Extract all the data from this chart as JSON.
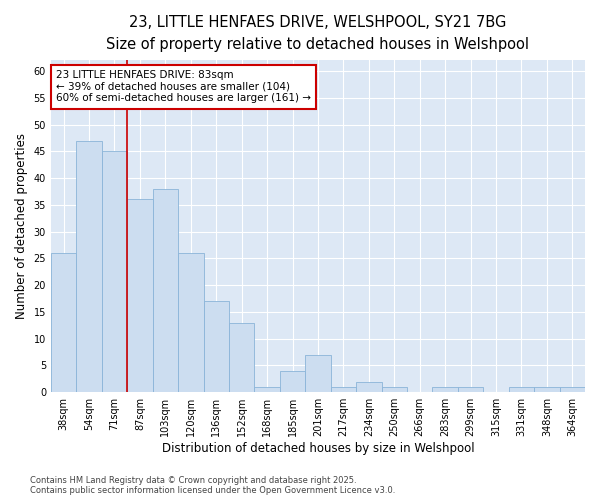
{
  "title_line1": "23, LITTLE HENFAES DRIVE, WELSHPOOL, SY21 7BG",
  "title_line2": "Size of property relative to detached houses in Welshpool",
  "xlabel": "Distribution of detached houses by size in Welshpool",
  "ylabel": "Number of detached properties",
  "categories": [
    "38sqm",
    "54sqm",
    "71sqm",
    "87sqm",
    "103sqm",
    "120sqm",
    "136sqm",
    "152sqm",
    "168sqm",
    "185sqm",
    "201sqm",
    "217sqm",
    "234sqm",
    "250sqm",
    "266sqm",
    "283sqm",
    "299sqm",
    "315sqm",
    "331sqm",
    "348sqm",
    "364sqm"
  ],
  "values": [
    26,
    47,
    45,
    36,
    38,
    26,
    17,
    13,
    1,
    4,
    7,
    1,
    2,
    1,
    0,
    1,
    1,
    0,
    1,
    1,
    1
  ],
  "bar_color": "#ccddf0",
  "bar_edge_color": "#8ab4d8",
  "vline_x": 2.5,
  "vline_color": "#cc0000",
  "annotation_text": "23 LITTLE HENFAES DRIVE: 83sqm\n← 39% of detached houses are smaller (104)\n60% of semi-detached houses are larger (161) →",
  "annotation_box_facecolor": "#ffffff",
  "annotation_box_edgecolor": "#cc0000",
  "ylim": [
    0,
    62
  ],
  "yticks": [
    0,
    5,
    10,
    15,
    20,
    25,
    30,
    35,
    40,
    45,
    50,
    55,
    60
  ],
  "fig_background": "#ffffff",
  "plot_bg_color": "#dde8f5",
  "grid_color": "#ffffff",
  "footer_text": "Contains HM Land Registry data © Crown copyright and database right 2025.\nContains public sector information licensed under the Open Government Licence v3.0.",
  "title_fontsize": 10.5,
  "subtitle_fontsize": 9.5,
  "tick_fontsize": 7,
  "label_fontsize": 8.5,
  "annotation_fontsize": 7.5,
  "footer_fontsize": 6
}
